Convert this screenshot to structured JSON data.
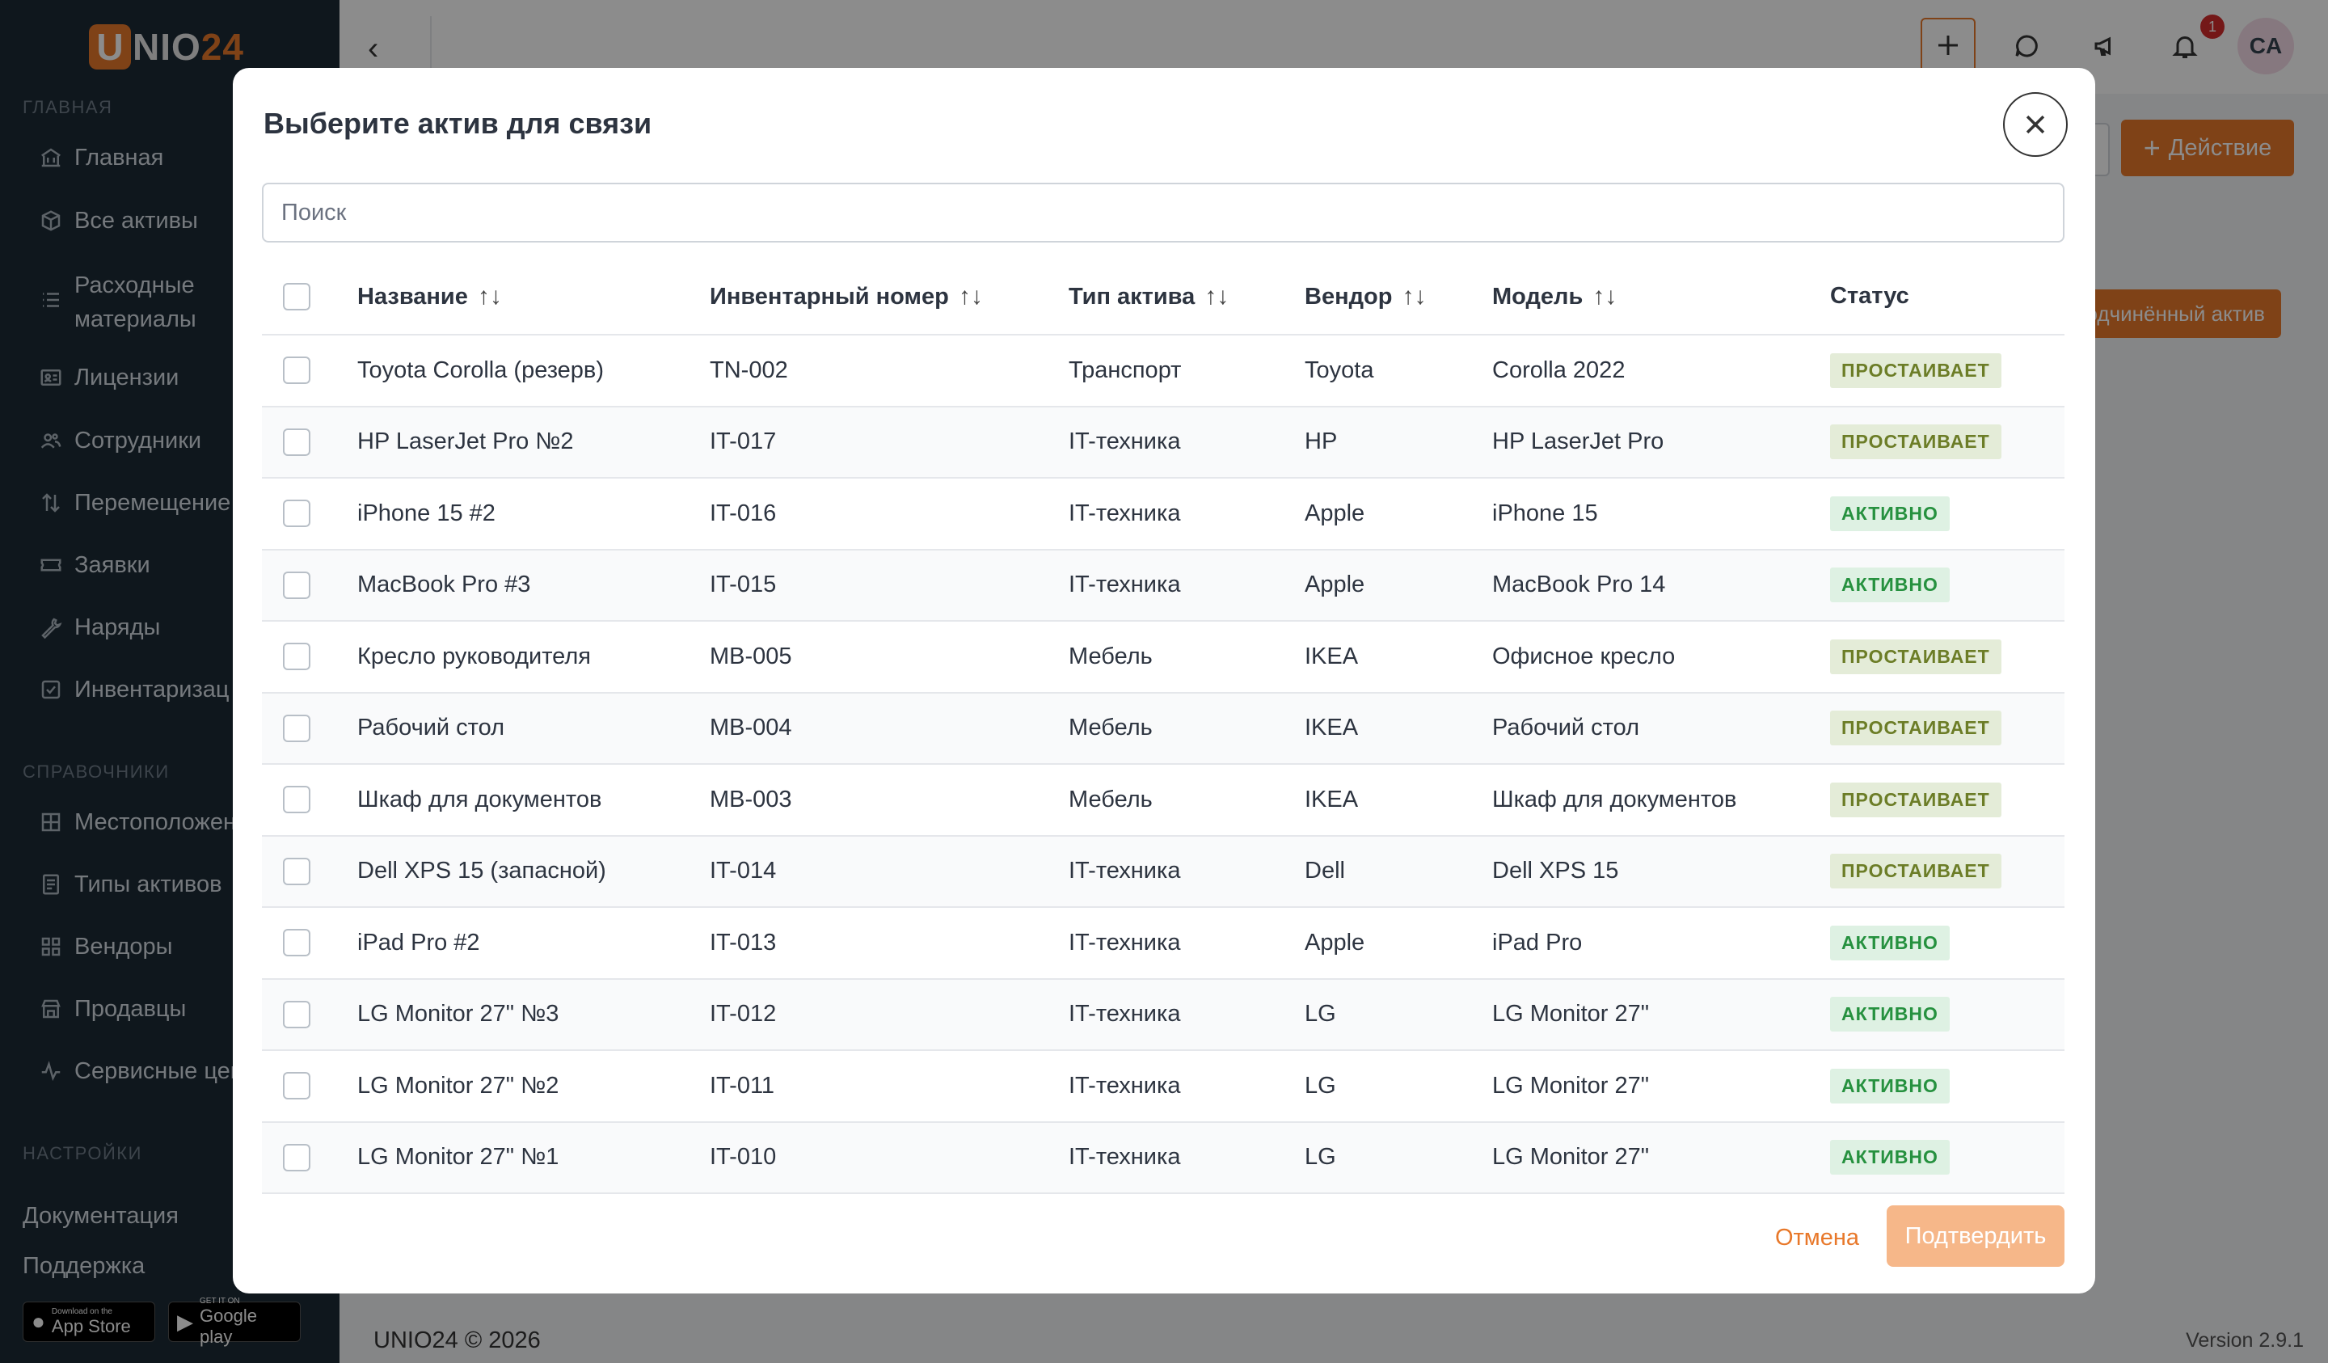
{
  "app": {
    "logo_letter": "U",
    "logo_text": "NIO",
    "logo_num": "24",
    "footer_left": "UNIO24 © 2026",
    "version": "Version 2.9.1"
  },
  "sidebar": {
    "section_main": "ГЛАВНАЯ",
    "section_refs": "СПРАВОЧНИКИ",
    "section_settings": "НАСТРОЙКИ",
    "main_items": [
      {
        "label": "Главная",
        "icon": "bank-icon"
      },
      {
        "label": "Все активы",
        "icon": "box-icon"
      },
      {
        "label": "Расходные\nматериалы",
        "icon": "list-icon"
      },
      {
        "label": "Лицензии",
        "icon": "id-card-icon"
      },
      {
        "label": "Сотрудники",
        "icon": "users-icon"
      },
      {
        "label": "Перемещение",
        "icon": "arrows-updown-icon"
      },
      {
        "label": "Заявки",
        "icon": "ticket-icon"
      },
      {
        "label": "Наряды",
        "icon": "wrench-icon"
      },
      {
        "label": "Инвентаризац",
        "icon": "checkbox-icon"
      }
    ],
    "ref_items": [
      {
        "label": "Местоположен",
        "icon": "grid-icon"
      },
      {
        "label": "Типы активов",
        "icon": "document-icon"
      },
      {
        "label": "Вендоры",
        "icon": "tiles-icon"
      },
      {
        "label": "Продавцы",
        "icon": "shop-icon"
      },
      {
        "label": "Сервисные цен",
        "icon": "pulse-icon"
      }
    ],
    "docs": "Документация",
    "support": "Поддержка",
    "appstore_small": "Download on the",
    "appstore_big": "App Store",
    "googleplay_small": "GET IT ON",
    "googleplay_big": "Google play"
  },
  "page": {
    "action_label": "Действие",
    "sub_action_label": "одчинённый актив",
    "notification_count": "1",
    "avatar_initials": "CA"
  },
  "modal": {
    "title": "Выберите актив для связи",
    "search_placeholder": "Поиск",
    "columns": [
      "Название",
      "Инвентарный номер",
      "Тип актива",
      "Вендор",
      "Модель",
      "Статус"
    ],
    "rows": [
      {
        "name": "Toyota Corolla (резерв)",
        "inv": "TN-002",
        "type": "Транспорт",
        "vendor": "Toyota",
        "model": "Corolla 2022",
        "status": "ПРОСТАИВАЕТ",
        "status_kind": "idle"
      },
      {
        "name": "HP LaserJet Pro №2",
        "inv": "IT-017",
        "type": "IT-техника",
        "vendor": "HP",
        "model": "HP LaserJet Pro",
        "status": "ПРОСТАИВАЕТ",
        "status_kind": "idle"
      },
      {
        "name": "iPhone 15 #2",
        "inv": "IT-016",
        "type": "IT-техника",
        "vendor": "Apple",
        "model": "iPhone 15",
        "status": "АКТИВНО",
        "status_kind": "active"
      },
      {
        "name": "MacBook Pro #3",
        "inv": "IT-015",
        "type": "IT-техника",
        "vendor": "Apple",
        "model": "MacBook Pro 14",
        "status": "АКТИВНО",
        "status_kind": "active"
      },
      {
        "name": "Кресло руководителя",
        "inv": "MB-005",
        "type": "Мебель",
        "vendor": "IKEA",
        "model": "Офисное кресло",
        "status": "ПРОСТАИВАЕТ",
        "status_kind": "idle"
      },
      {
        "name": "Рабочий стол",
        "inv": "MB-004",
        "type": "Мебель",
        "vendor": "IKEA",
        "model": "Рабочий стол",
        "status": "ПРОСТАИВАЕТ",
        "status_kind": "idle"
      },
      {
        "name": "Шкаф для документов",
        "inv": "MB-003",
        "type": "Мебель",
        "vendor": "IKEA",
        "model": "Шкаф для документов",
        "status": "ПРОСТАИВАЕТ",
        "status_kind": "idle"
      },
      {
        "name": "Dell XPS 15 (запасной)",
        "inv": "IT-014",
        "type": "IT-техника",
        "vendor": "Dell",
        "model": "Dell XPS 15",
        "status": "ПРОСТАИВАЕТ",
        "status_kind": "idle"
      },
      {
        "name": "iPad Pro #2",
        "inv": "IT-013",
        "type": "IT-техника",
        "vendor": "Apple",
        "model": "iPad Pro",
        "status": "АКТИВНО",
        "status_kind": "active"
      },
      {
        "name": "LG Monitor 27\" №3",
        "inv": "IT-012",
        "type": "IT-техника",
        "vendor": "LG",
        "model": "LG Monitor 27\"",
        "status": "АКТИВНО",
        "status_kind": "active"
      },
      {
        "name": "LG Monitor 27\" №2",
        "inv": "IT-011",
        "type": "IT-техника",
        "vendor": "LG",
        "model": "LG Monitor 27\"",
        "status": "АКТИВНО",
        "status_kind": "active"
      },
      {
        "name": "LG Monitor 27\" №1",
        "inv": "IT-010",
        "type": "IT-техника",
        "vendor": "LG",
        "model": "LG Monitor 27\"",
        "status": "АКТИВНО",
        "status_kind": "active"
      }
    ],
    "cancel_label": "Отмена",
    "confirm_label": "Подтвердить"
  },
  "colors": {
    "accent": "#e8782a",
    "sidebar_bg": "#1c2a36",
    "status_idle_bg": "#e4ecd8",
    "status_idle_text": "#6c7d27",
    "status_active_bg": "#def1e3",
    "status_active_text": "#26913f"
  }
}
